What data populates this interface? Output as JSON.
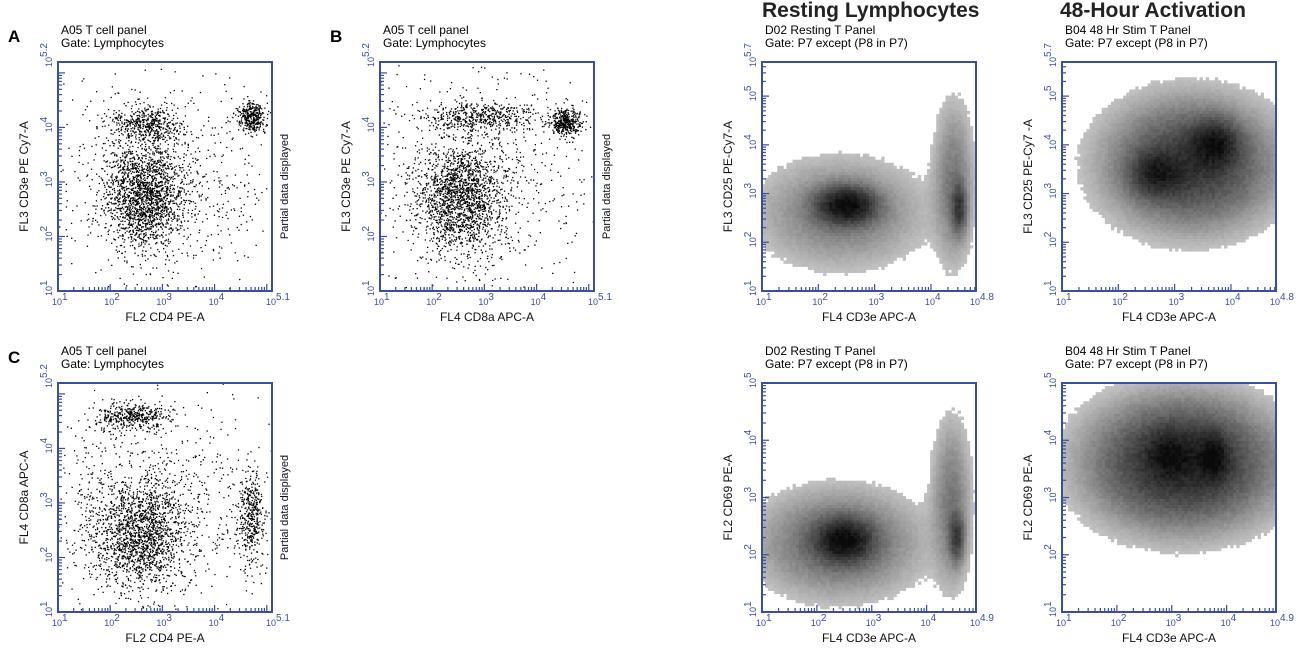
{
  "sections": {
    "resting": "Resting Lymphocytes",
    "activation": "48-Hour Activation"
  },
  "colors": {
    "axis": "#3a4e9a",
    "dot_dark": "#000000",
    "density_low": "#c8c8c8",
    "density_high": "#0a0a0a"
  },
  "chart_data": [
    {
      "id": "A",
      "type": "scatter",
      "panel_letter": "A",
      "title_lines": [
        "A05 T cell panel",
        "Gate: Lymphocytes"
      ],
      "xlabel": "FL2 CD4 PE-A",
      "ylabel": "FL3 CD3e PE Cy7-A",
      "side_note": "Partial data displayed",
      "xlim": [
        1,
        5.1
      ],
      "ylim": [
        1,
        5.2
      ],
      "x_ticks": [
        "1",
        "2",
        "3",
        "4"
      ],
      "x_max_label": "5.1",
      "y_ticks": [
        "1",
        "2",
        "3",
        "4"
      ],
      "y_max_label": "5.2",
      "log_scale": true,
      "render": "dots",
      "populations": [
        {
          "x": 2.65,
          "y": 2.75,
          "sx": 0.4,
          "sy": 0.5,
          "weight": 0.55
        },
        {
          "x": 2.65,
          "y": 4.05,
          "sx": 0.35,
          "sy": 0.18,
          "weight": 0.14
        },
        {
          "x": 4.7,
          "y": 4.2,
          "sx": 0.12,
          "sy": 0.14,
          "weight": 0.11
        },
        {
          "x": 2.9,
          "y": 3.1,
          "sx": 1.2,
          "sy": 1.0,
          "weight": 0.2
        }
      ]
    },
    {
      "id": "B",
      "type": "scatter",
      "panel_letter": "B",
      "title_lines": [
        "A05 T cell panel",
        "Gate: Lymphocytes"
      ],
      "xlabel": "FL4 CD8a APC-A",
      "ylabel": "FL3 CD3e PE Cy7-A",
      "side_note": "Partial data displayed",
      "xlim": [
        1,
        5.1
      ],
      "ylim": [
        1,
        5.2
      ],
      "x_ticks": [
        "1",
        "2",
        "3",
        "4"
      ],
      "x_max_label": "5.1",
      "y_ticks": [
        "1",
        "2",
        "3",
        "4"
      ],
      "y_max_label": "5.2",
      "log_scale": true,
      "render": "dots",
      "populations": [
        {
          "x": 2.55,
          "y": 2.7,
          "sx": 0.4,
          "sy": 0.5,
          "weight": 0.5
        },
        {
          "x": 2.9,
          "y": 4.2,
          "sx": 0.55,
          "sy": 0.13,
          "weight": 0.15
        },
        {
          "x": 4.55,
          "y": 4.1,
          "sx": 0.15,
          "sy": 0.13,
          "weight": 0.12
        },
        {
          "x": 2.8,
          "y": 3.0,
          "sx": 1.2,
          "sy": 1.0,
          "weight": 0.23
        }
      ]
    },
    {
      "id": "C",
      "type": "scatter",
      "panel_letter": "C",
      "title_lines": [
        "A05 T cell panel",
        "Gate: Lymphocytes"
      ],
      "xlabel": "FL2 CD4 PE-A",
      "ylabel": "FL4 CD8a APC-A",
      "side_note": "Partial data displayed",
      "xlim": [
        1,
        5.1
      ],
      "ylim": [
        1,
        5.2
      ],
      "x_ticks": [
        "1",
        "2",
        "3",
        "4"
      ],
      "x_max_label": "5.1",
      "y_ticks": [
        "1",
        "2",
        "3",
        "4"
      ],
      "y_max_label": "5.2",
      "log_scale": true,
      "render": "dots",
      "populations": [
        {
          "x": 2.55,
          "y": 2.45,
          "sx": 0.45,
          "sy": 0.5,
          "weight": 0.5
        },
        {
          "x": 2.45,
          "y": 4.6,
          "sx": 0.35,
          "sy": 0.13,
          "weight": 0.13
        },
        {
          "x": 4.7,
          "y": 2.7,
          "sx": 0.12,
          "sy": 0.45,
          "weight": 0.12
        },
        {
          "x": 2.8,
          "y": 3.0,
          "sx": 1.2,
          "sy": 1.0,
          "weight": 0.25
        }
      ]
    },
    {
      "id": "D1",
      "type": "heatmap",
      "panel_letter": "",
      "title_lines": [
        "D02 Resting T Panel",
        "Gate: P7 except (P8 in P7)"
      ],
      "xlabel": "FL4 CD3e APC-A",
      "ylabel": "FL3 CD25 PE-Cy7-A",
      "side_note": "",
      "xlim": [
        1,
        4.8
      ],
      "ylim": [
        1,
        5.7
      ],
      "x_ticks": [
        "1",
        "2",
        "3",
        "4"
      ],
      "x_max_label": "4.8",
      "y_ticks": [
        "1",
        "2",
        "3",
        "4",
        "5"
      ],
      "y_max_label": "5.7",
      "log_scale": true,
      "render": "density",
      "populations": [
        {
          "x": 2.5,
          "y": 2.75,
          "sx": 0.3,
          "sy": 0.22,
          "weight": 0.55
        },
        {
          "x": 4.5,
          "y": 2.7,
          "sx": 0.08,
          "sy": 0.3,
          "weight": 0.25
        },
        {
          "x": 4.4,
          "y": 3.2,
          "sx": 0.2,
          "sy": 0.9,
          "weight": 0.1
        },
        {
          "x": 2.4,
          "y": 2.6,
          "sx": 0.8,
          "sy": 0.6,
          "weight": 0.1
        }
      ]
    },
    {
      "id": "D2",
      "type": "heatmap",
      "panel_letter": "",
      "title_lines": [
        "B04 48 Hr Stim T Panel",
        "Gate: P7 except (P8 in P7)"
      ],
      "xlabel": "FL4 CD3e APC-A",
      "ylabel": "FL3 CD25 PE-Cy7 -A",
      "side_note": "",
      "xlim": [
        1,
        4.8
      ],
      "ylim": [
        1,
        5.7
      ],
      "x_ticks": [
        "1",
        "2",
        "3",
        "4"
      ],
      "x_max_label": "4.8",
      "y_ticks": [
        "1",
        "2",
        "3",
        "4",
        "5"
      ],
      "y_max_label": "5.7",
      "log_scale": true,
      "render": "density",
      "populations": [
        {
          "x": 3.7,
          "y": 4.0,
          "sx": 0.25,
          "sy": 0.28,
          "weight": 0.4
        },
        {
          "x": 2.7,
          "y": 3.4,
          "sx": 0.28,
          "sy": 0.28,
          "weight": 0.3
        },
        {
          "x": 3.3,
          "y": 3.6,
          "sx": 0.8,
          "sy": 0.7,
          "weight": 0.3
        }
      ]
    },
    {
      "id": "D3",
      "type": "heatmap",
      "panel_letter": "",
      "title_lines": [
        "D02 Resting T Panel",
        "Gate: P7 except (P8 in P7)"
      ],
      "xlabel": "FL4 CD3e APC-A",
      "ylabel": "FL2 CD69 PE-A",
      "side_note": "",
      "xlim": [
        1,
        4.9
      ],
      "ylim": [
        1,
        5
      ],
      "x_ticks": [
        "1",
        "2",
        "3",
        "4"
      ],
      "x_max_label": "4.9",
      "y_ticks": [
        "1",
        "2",
        "3",
        "4"
      ],
      "y_max_label": "5",
      "log_scale": true,
      "render": "density",
      "populations": [
        {
          "x": 2.5,
          "y": 2.25,
          "sx": 0.3,
          "sy": 0.22,
          "weight": 0.5
        },
        {
          "x": 4.55,
          "y": 2.3,
          "sx": 0.08,
          "sy": 0.25,
          "weight": 0.25
        },
        {
          "x": 4.45,
          "y": 2.9,
          "sx": 0.2,
          "sy": 0.8,
          "weight": 0.1
        },
        {
          "x": 2.4,
          "y": 2.2,
          "sx": 0.8,
          "sy": 0.5,
          "weight": 0.15
        }
      ]
    },
    {
      "id": "D4",
      "type": "heatmap",
      "panel_letter": "",
      "title_lines": [
        "B04 48 Hr Stim T Panel",
        "Gate: P7 except (P8 in P7)"
      ],
      "xlabel": "FL4 CD3e APC-A",
      "ylabel": "FL2 CD69 PE-A",
      "side_note": "",
      "xlim": [
        1,
        4.9
      ],
      "ylim": [
        1,
        5
      ],
      "x_ticks": [
        "1",
        "2",
        "3",
        "4"
      ],
      "x_max_label": "4.9",
      "y_ticks": [
        "1",
        "2",
        "3",
        "4"
      ],
      "y_max_label": "5",
      "log_scale": true,
      "render": "density",
      "populations": [
        {
          "x": 3.75,
          "y": 3.7,
          "sx": 0.18,
          "sy": 0.25,
          "weight": 0.35
        },
        {
          "x": 2.95,
          "y": 3.75,
          "sx": 0.25,
          "sy": 0.25,
          "weight": 0.25
        },
        {
          "x": 3.2,
          "y": 3.6,
          "sx": 0.9,
          "sy": 0.6,
          "weight": 0.4
        }
      ]
    }
  ]
}
